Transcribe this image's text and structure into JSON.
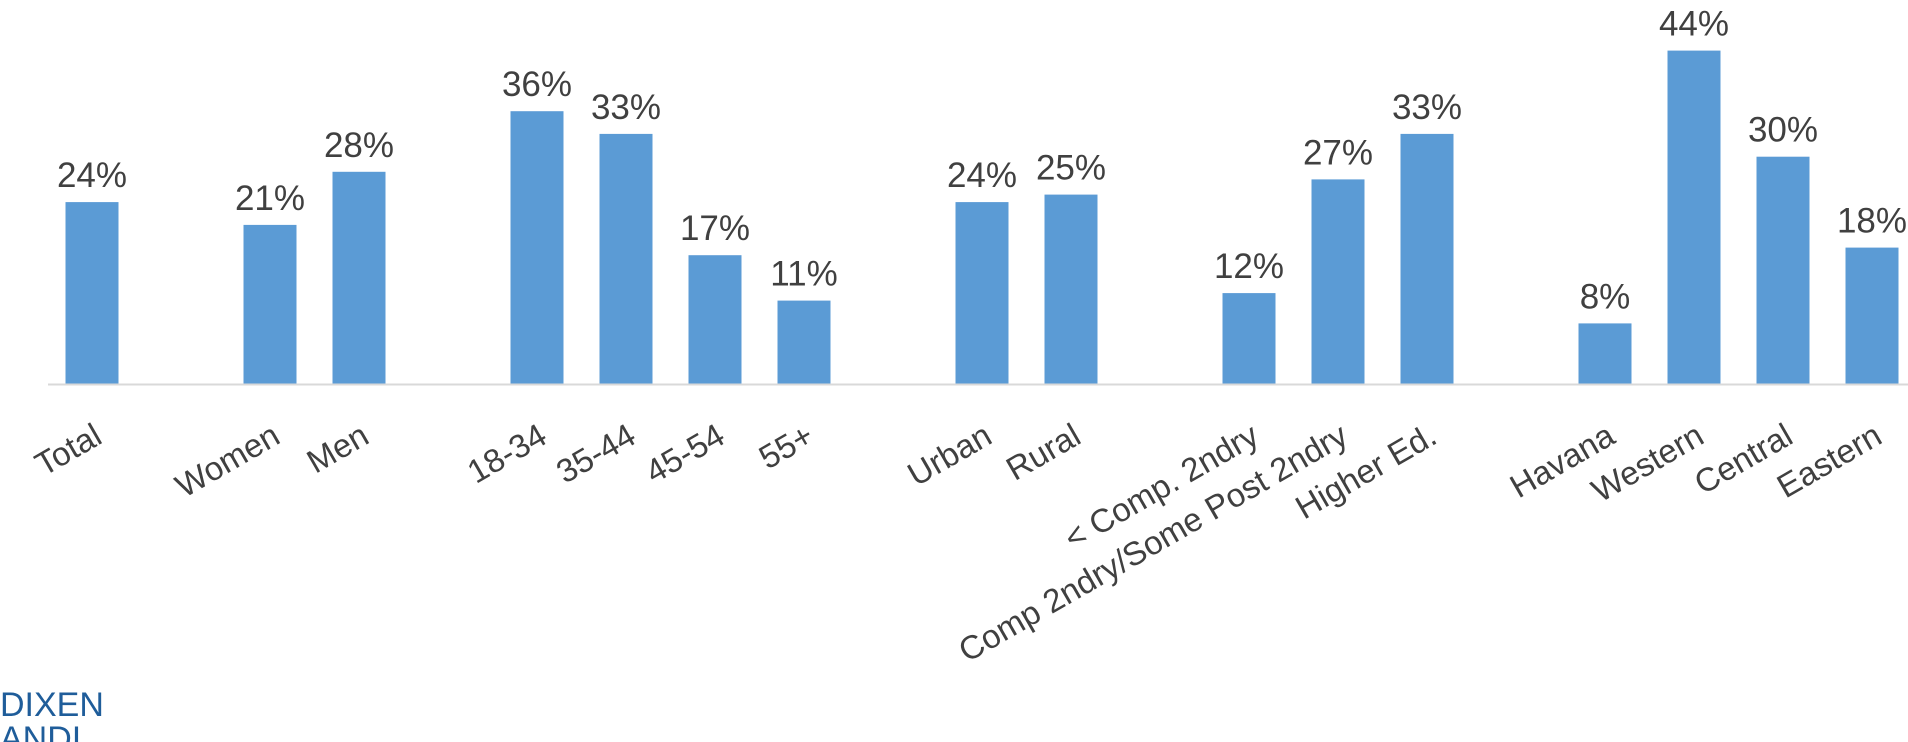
{
  "chart_data": {
    "type": "bar",
    "categories": [
      "Total",
      "Women",
      "Men",
      "18-34",
      "35-44",
      "45-54",
      "55+",
      "Urban",
      "Rural",
      "< Comp. 2ndry",
      "Comp 2ndry/Some Post 2ndry",
      "Higher Ed.",
      "Havana",
      "Western",
      "Central",
      "Eastern"
    ],
    "groups": [
      [
        "Total"
      ],
      [
        "Women",
        "Men"
      ],
      [
        "18-34",
        "35-44",
        "45-54",
        "55+"
      ],
      [
        "Urban",
        "Rural"
      ],
      [
        "< Comp. 2ndry",
        "Comp 2ndry/Some Post 2ndry",
        "Higher Ed."
      ],
      [
        "Havana",
        "Western",
        "Central",
        "Eastern"
      ]
    ],
    "series": [
      {
        "values": [
          24,
          21,
          28,
          36,
          33,
          17,
          11,
          24,
          25,
          12,
          27,
          33,
          8,
          44,
          30,
          18
        ]
      }
    ],
    "value_labels": [
      "24%",
      "21%",
      "28%",
      "36%",
      "33%",
      "17%",
      "11%",
      "24%",
      "25%",
      "12%",
      "27%",
      "33%",
      "8%",
      "44%",
      "30%",
      "18%"
    ],
    "ylim": [
      0,
      45
    ],
    "grid": false,
    "legend": "none",
    "bar_color": "#5b9bd5",
    "axis_color": "#d9d9d9",
    "text_color": "#404040"
  },
  "logo": {
    "line1": "DIXEN",
    "line2": "ANDI",
    "color": "#1f5d9a"
  }
}
